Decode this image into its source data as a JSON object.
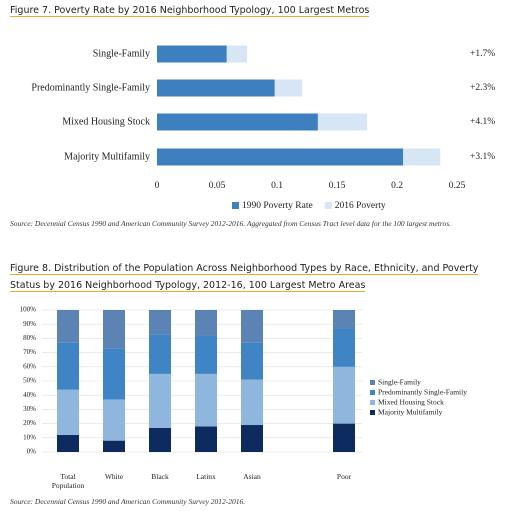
{
  "chart_data": [
    {
      "type": "bar",
      "orientation": "horizontal",
      "title": "Figure 7. Poverty Rate by 2016 Neighborhood Typology, 100 Largest Metros",
      "note": "Source: Decennial Census 1990 and American Community Survey 2012-2016. Aggregated from Census Tract level data for the 100 largest metros.",
      "categories": [
        "Single-Family",
        "Predominantly Single-Family",
        "Mixed Housing Stock",
        "Majority Multifamily"
      ],
      "series": [
        {
          "name": "1990 Poverty Rate",
          "color": "#3d7fbf",
          "values": [
            0.058,
            0.098,
            0.134,
            0.205
          ]
        },
        {
          "name": "2016 Poverty",
          "color": "#d6e6f5",
          "values": [
            0.075,
            0.121,
            0.175,
            0.236
          ]
        }
      ],
      "change_labels": [
        "+1.7%",
        "+2.3%",
        "+4.1%",
        "+3.1%"
      ],
      "xlim": [
        0,
        0.25
      ],
      "xticks": [
        0,
        0.05,
        0.1,
        0.15,
        0.2,
        0.25
      ],
      "legend": "bottom"
    },
    {
      "type": "stacked_bar",
      "title": "Figure 8. Distribution of the Population Across Neighborhood Types by Race, Ethnicity, and Poverty Status by 2016 Neighborhood Typology, 2012-16, 100 Largest Metro Areas",
      "note": "Source: Decennial Census 1990 and American Community Survey 2012-2016.",
      "categories": [
        "Total Population",
        "White",
        "Black",
        "Latinx",
        "Asian",
        null,
        "Poor"
      ],
      "series": [
        {
          "name": "Majority Multifamily",
          "color": "#0d2b5e",
          "values": [
            12,
            8,
            17,
            18,
            19,
            null,
            20
          ]
        },
        {
          "name": "Mixed Housing Stock",
          "color": "#8fb6dc",
          "values": [
            32,
            29,
            38,
            37,
            32,
            null,
            40
          ]
        },
        {
          "name": "Predominantly Single-Family",
          "color": "#3f85c6",
          "values": [
            33,
            36,
            28,
            27,
            26,
            null,
            27
          ]
        },
        {
          "name": "Single-Family",
          "color": "#5b84b4",
          "values": [
            23,
            27,
            17,
            18,
            23,
            null,
            13
          ]
        }
      ],
      "ylim": [
        0,
        100
      ],
      "yticks": [
        {
          "value": 0,
          "label": "0%"
        },
        {
          "value": 10,
          "label": "10%"
        },
        {
          "value": 20,
          "label": "20%"
        },
        {
          "value": 30,
          "label": "30%"
        },
        {
          "value": 40,
          "label": "40%"
        },
        {
          "value": 50,
          "label": "50%"
        },
        {
          "value": 60,
          "label": "60%"
        },
        {
          "value": 70,
          "label": "70%"
        },
        {
          "value": 80,
          "label": "80%"
        },
        {
          "value": 90,
          "label": "90%"
        },
        {
          "value": 100,
          "label": "100%"
        }
      ],
      "legend": "right"
    }
  ]
}
